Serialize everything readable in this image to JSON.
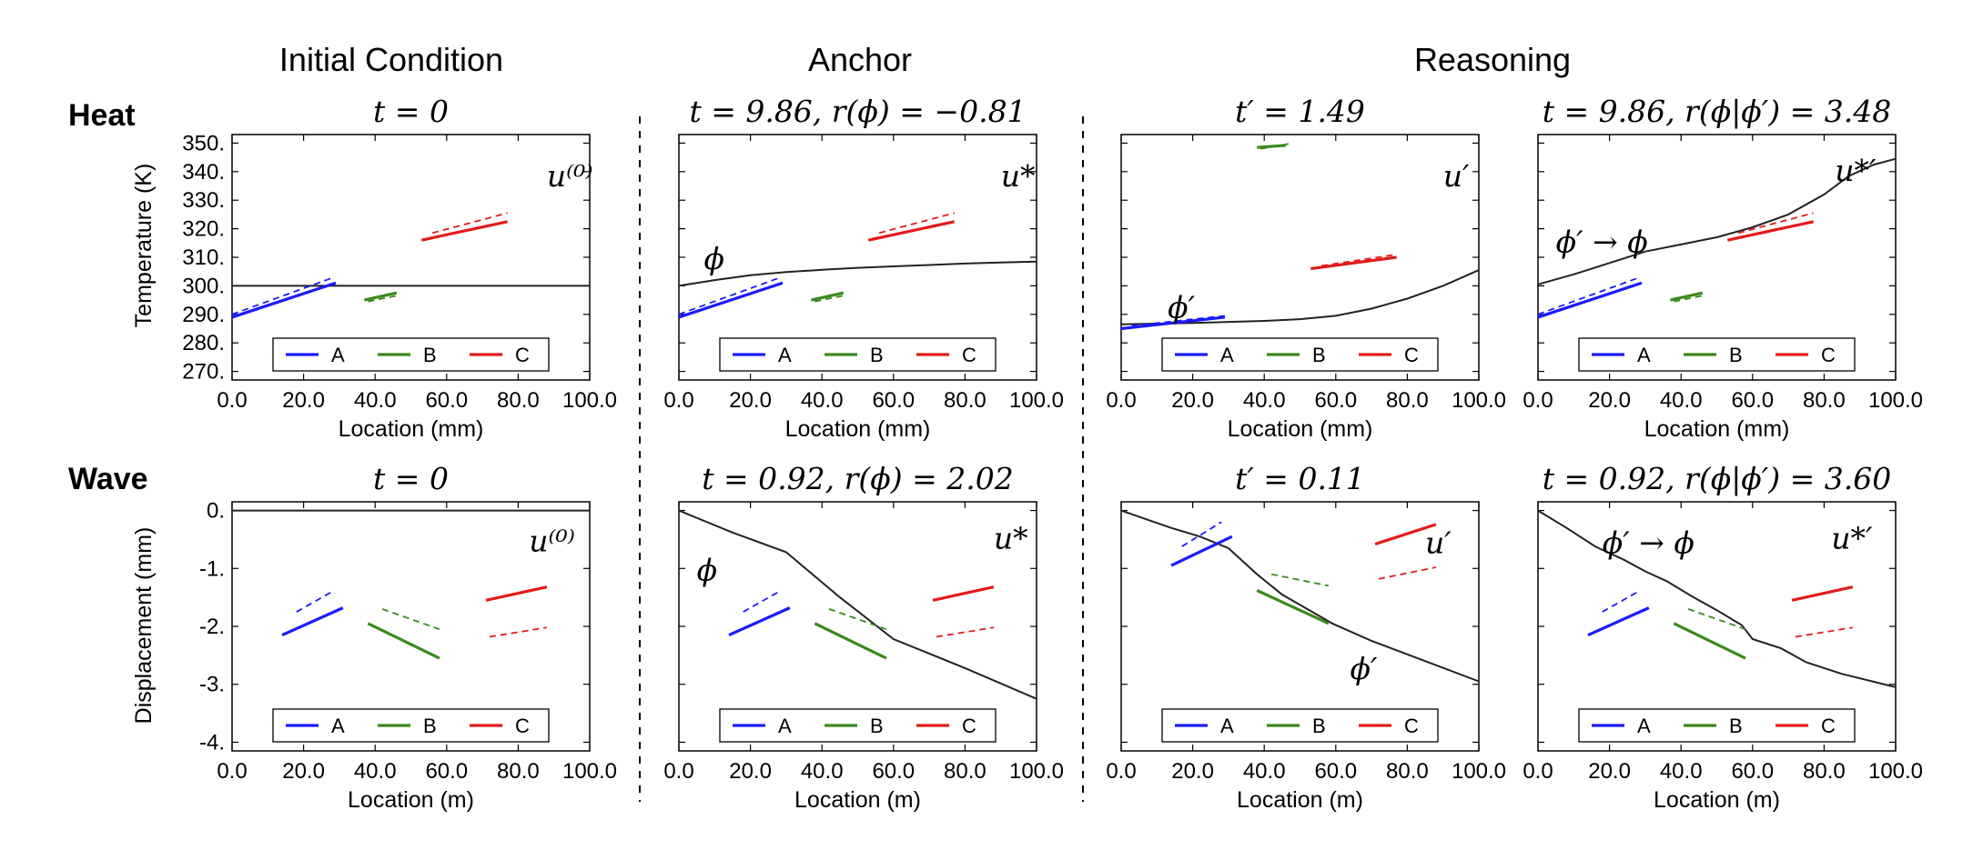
{
  "column_headers": [
    "Initial Condition",
    "Anchor",
    "Reasoning"
  ],
  "row_labels": [
    "Heat",
    "Wave"
  ],
  "legend_items": [
    {
      "label": "A",
      "color": "#1a1aff"
    },
    {
      "label": "B",
      "color": "#3a8a1c"
    },
    {
      "label": "C",
      "color": "#e31a1a"
    }
  ],
  "colors": {
    "line": "#222222",
    "A": "#1a1aff",
    "B": "#3a8a1c",
    "C": "#e31a1a"
  },
  "heat": {
    "ylabel": "Temperature (K)",
    "xlabel": "Location (mm)",
    "yticks": [
      "350.",
      "340.",
      "330.",
      "320.",
      "310.",
      "300.",
      "290.",
      "280.",
      "270."
    ],
    "xticks": [
      "0.0",
      "20.0",
      "40.0",
      "60.0",
      "80.0",
      "100.0"
    ]
  },
  "wave": {
    "ylabel": "Displacement (mm)",
    "xlabel": "Location (m)",
    "yticks": [
      "0.",
      "-1.",
      "-2.",
      "-3.",
      "-4."
    ],
    "xticks": [
      "0.0",
      "20.0",
      "40.0",
      "60.0",
      "80.0",
      "100.0"
    ]
  },
  "chart_data": [
    {
      "type": "line",
      "row": "Heat",
      "column": "Initial Condition",
      "title": "t = 0",
      "annotations": [
        {
          "text": "u⁽⁰⁾",
          "x": 88,
          "y": 338
        }
      ],
      "xlim": [
        0,
        100
      ],
      "ylim": [
        267,
        353
      ],
      "curve": [
        [
          0,
          300
        ],
        [
          100,
          300
        ]
      ],
      "segments": [
        {
          "key": "A",
          "solid": [
            [
              0,
              289
            ],
            [
              29,
              301
            ]
          ],
          "dashed": [
            [
              0,
              290
            ],
            [
              28.5,
              303
            ]
          ]
        },
        {
          "key": "B",
          "solid": [
            [
              37,
              295
            ],
            [
              46,
              297.5
            ]
          ],
          "dashed": [
            [
              38,
              294.5
            ],
            [
              47,
              296.8
            ]
          ]
        },
        {
          "key": "C",
          "solid": [
            [
              53,
              316
            ],
            [
              77,
              322.5
            ]
          ],
          "dashed": [
            [
              56,
              318.5
            ],
            [
              77,
              325.5
            ]
          ]
        }
      ]
    },
    {
      "type": "line",
      "row": "Heat",
      "column": "Anchor",
      "title": "t = 9.86, r(ϕ) = −0.81",
      "annotations": [
        {
          "text": "u*",
          "x": 90,
          "y": 338
        },
        {
          "text": "ϕ",
          "x": 7,
          "y": 309
        }
      ],
      "xlim": [
        0,
        100
      ],
      "ylim": [
        267,
        353
      ],
      "curve": [
        [
          0,
          300
        ],
        [
          10,
          302
        ],
        [
          20,
          303.7
        ],
        [
          30,
          304.8
        ],
        [
          40,
          305.6
        ],
        [
          50,
          306.3
        ],
        [
          60,
          306.8
        ],
        [
          70,
          307.3
        ],
        [
          80,
          307.8
        ],
        [
          90,
          308.2
        ],
        [
          100,
          308.5
        ]
      ],
      "segments": [
        {
          "key": "A",
          "solid": [
            [
              0,
              289
            ],
            [
              29,
              301
            ]
          ],
          "dashed": [
            [
              0,
              290
            ],
            [
              28.5,
              303
            ]
          ]
        },
        {
          "key": "B",
          "solid": [
            [
              37,
              295
            ],
            [
              46,
              297.5
            ]
          ],
          "dashed": [
            [
              38,
              294.5
            ],
            [
              47,
              296.8
            ]
          ]
        },
        {
          "key": "C",
          "solid": [
            [
              53,
              316
            ],
            [
              77,
              322.5
            ]
          ],
          "dashed": [
            [
              56,
              318.5
            ],
            [
              77,
              325.5
            ]
          ]
        }
      ]
    },
    {
      "type": "line",
      "row": "Heat",
      "column": "Reasoning",
      "title": "t′ = 1.49",
      "annotations": [
        {
          "text": "u′",
          "x": 90,
          "y": 338
        },
        {
          "text": "ϕ′",
          "x": 13,
          "y": 292
        }
      ],
      "xlim": [
        0,
        100
      ],
      "ylim": [
        267,
        353
      ],
      "curve": [
        [
          0,
          286.5
        ],
        [
          20,
          287
        ],
        [
          40,
          287.7
        ],
        [
          50,
          288.3
        ],
        [
          60,
          289.5
        ],
        [
          70,
          292
        ],
        [
          80,
          295.5
        ],
        [
          90,
          300
        ],
        [
          100,
          305.5
        ]
      ],
      "segments": [
        {
          "key": "A",
          "solid": [
            [
              0,
              285
            ],
            [
              29,
              289
            ]
          ],
          "dashed": [
            [
              3,
              286
            ],
            [
              29,
              289.5
            ]
          ]
        },
        {
          "key": "B",
          "solid": [
            [
              38,
              348.5
            ],
            [
              46,
              349.2
            ]
          ],
          "dashed": [
            [
              39,
              348
            ],
            [
              47,
              349.8
            ]
          ]
        },
        {
          "key": "C",
          "solid": [
            [
              53,
              306
            ],
            [
              77,
              310
            ]
          ],
          "dashed": [
            [
              56,
              307
            ],
            [
              77,
              311
            ]
          ]
        }
      ]
    },
    {
      "type": "line",
      "row": "Heat",
      "column": "Reasoning",
      "title": "t = 9.86, r(ϕ|ϕ′) = 3.48",
      "annotations": [
        {
          "text": "u*′",
          "x": 83,
          "y": 340
        },
        {
          "text": "ϕ′ → ϕ",
          "x": 5,
          "y": 315
        }
      ],
      "xlim": [
        0,
        100
      ],
      "ylim": [
        267,
        353
      ],
      "curve": [
        [
          0,
          300.5
        ],
        [
          10,
          304
        ],
        [
          20,
          308
        ],
        [
          30,
          312
        ],
        [
          40,
          314.5
        ],
        [
          50,
          317
        ],
        [
          60,
          320.5
        ],
        [
          70,
          325
        ],
        [
          80,
          332
        ],
        [
          87,
          338.5
        ],
        [
          94,
          342.5
        ],
        [
          100,
          344.5
        ]
      ],
      "segments": [
        {
          "key": "A",
          "solid": [
            [
              0,
              289
            ],
            [
              29,
              301
            ]
          ],
          "dashed": [
            [
              0,
              290
            ],
            [
              28.5,
              303
            ]
          ]
        },
        {
          "key": "B",
          "solid": [
            [
              37,
              295
            ],
            [
              46,
              297.5
            ]
          ],
          "dashed": [
            [
              38,
              294.5
            ],
            [
              47,
              296.8
            ]
          ]
        },
        {
          "key": "C",
          "solid": [
            [
              53,
              316
            ],
            [
              77,
              322.5
            ]
          ],
          "dashed": [
            [
              56,
              318.5
            ],
            [
              77,
              325.5
            ]
          ]
        }
      ]
    },
    {
      "type": "line",
      "row": "Wave",
      "column": "Initial Condition",
      "title": "t = 0",
      "annotations": [
        {
          "text": "u⁽⁰⁾",
          "x": 83,
          "y": -0.55
        }
      ],
      "xlim": [
        0,
        100
      ],
      "ylim": [
        -4.15,
        0.15
      ],
      "curve": [
        [
          0,
          0
        ],
        [
          100,
          0
        ]
      ],
      "segments": [
        {
          "key": "A",
          "solid": [
            [
              14,
              -2.15
            ],
            [
              31,
              -1.68
            ]
          ],
          "dashed": [
            [
              18,
              -1.75
            ],
            [
              28,
              -1.4
            ]
          ]
        },
        {
          "key": "B",
          "solid": [
            [
              38,
              -1.95
            ],
            [
              58,
              -2.55
            ]
          ],
          "dashed": [
            [
              42,
              -1.7
            ],
            [
              58,
              -2.05
            ]
          ]
        },
        {
          "key": "C",
          "solid": [
            [
              71,
              -1.55
            ],
            [
              88,
              -1.32
            ]
          ],
          "dashed": [
            [
              72,
              -2.18
            ],
            [
              88,
              -2.02
            ]
          ]
        }
      ]
    },
    {
      "type": "line",
      "row": "Wave",
      "column": "Anchor",
      "title": "t = 0.92, r(ϕ) = 2.02",
      "annotations": [
        {
          "text": "u*",
          "x": 88,
          "y": -0.5
        },
        {
          "text": "ϕ",
          "x": 5,
          "y": -1.05
        }
      ],
      "xlim": [
        0,
        100
      ],
      "ylim": [
        -4.15,
        0.15
      ],
      "curve": [
        [
          0,
          0
        ],
        [
          15,
          -0.38
        ],
        [
          30,
          -0.72
        ],
        [
          45,
          -1.5
        ],
        [
          60,
          -2.22
        ],
        [
          80,
          -2.72
        ],
        [
          100,
          -3.25
        ]
      ],
      "segments": [
        {
          "key": "A",
          "solid": [
            [
              14,
              -2.15
            ],
            [
              31,
              -1.68
            ]
          ],
          "dashed": [
            [
              18,
              -1.75
            ],
            [
              28,
              -1.4
            ]
          ]
        },
        {
          "key": "B",
          "solid": [
            [
              38,
              -1.95
            ],
            [
              58,
              -2.55
            ]
          ],
          "dashed": [
            [
              42,
              -1.7
            ],
            [
              58,
              -2.05
            ]
          ]
        },
        {
          "key": "C",
          "solid": [
            [
              71,
              -1.55
            ],
            [
              88,
              -1.32
            ]
          ],
          "dashed": [
            [
              72,
              -2.18
            ],
            [
              88,
              -2.02
            ]
          ]
        }
      ]
    },
    {
      "type": "line",
      "row": "Wave",
      "column": "Reasoning",
      "title": "t′ = 0.11",
      "annotations": [
        {
          "text": "u′",
          "x": 85,
          "y": -0.58
        },
        {
          "text": "ϕ′",
          "x": 64,
          "y": -2.75
        }
      ],
      "xlim": [
        0,
        100
      ],
      "ylim": [
        -4.15,
        0.15
      ],
      "curve": [
        [
          0,
          0
        ],
        [
          14,
          -0.3
        ],
        [
          22,
          -0.45
        ],
        [
          30,
          -0.65
        ],
        [
          38,
          -1.1
        ],
        [
          45,
          -1.45
        ],
        [
          52,
          -1.7
        ],
        [
          59,
          -1.95
        ],
        [
          70,
          -2.25
        ],
        [
          85,
          -2.6
        ],
        [
          100,
          -2.95
        ]
      ],
      "segments": [
        {
          "key": "A",
          "solid": [
            [
              14,
              -0.95
            ],
            [
              31,
              -0.45
            ]
          ],
          "dashed": [
            [
              17,
              -0.62
            ],
            [
              28,
              -0.2
            ]
          ]
        },
        {
          "key": "B",
          "solid": [
            [
              38,
              -1.38
            ],
            [
              58,
              -1.95
            ]
          ],
          "dashed": [
            [
              42,
              -1.1
            ],
            [
              58,
              -1.3
            ]
          ]
        },
        {
          "key": "C",
          "solid": [
            [
              71,
              -0.58
            ],
            [
              88,
              -0.24
            ]
          ],
          "dashed": [
            [
              72,
              -1.18
            ],
            [
              88,
              -0.98
            ]
          ]
        }
      ]
    },
    {
      "type": "line",
      "row": "Wave",
      "column": "Reasoning",
      "title": "t = 0.92, r(ϕ|ϕ′) = 3.60",
      "annotations": [
        {
          "text": "u*′",
          "x": 82,
          "y": -0.5
        },
        {
          "text": "ϕ′ → ϕ",
          "x": 18,
          "y": -0.58
        }
      ],
      "xlim": [
        0,
        100
      ],
      "ylim": [
        -4.15,
        0.15
      ],
      "curve": [
        [
          0,
          0
        ],
        [
          8,
          -0.3
        ],
        [
          16,
          -0.62
        ],
        [
          24,
          -0.85
        ],
        [
          30,
          -1.05
        ],
        [
          36,
          -1.22
        ],
        [
          43,
          -1.48
        ],
        [
          50,
          -1.72
        ],
        [
          57,
          -1.98
        ],
        [
          60,
          -2.22
        ],
        [
          68,
          -2.38
        ],
        [
          75,
          -2.62
        ],
        [
          85,
          -2.82
        ],
        [
          100,
          -3.05
        ]
      ],
      "segments": [
        {
          "key": "A",
          "solid": [
            [
              14,
              -2.15
            ],
            [
              31,
              -1.68
            ]
          ],
          "dashed": [
            [
              18,
              -1.75
            ],
            [
              28,
              -1.4
            ]
          ]
        },
        {
          "key": "B",
          "solid": [
            [
              38,
              -1.95
            ],
            [
              58,
              -2.55
            ]
          ],
          "dashed": [
            [
              42,
              -1.7
            ],
            [
              58,
              -2.05
            ]
          ]
        },
        {
          "key": "C",
          "solid": [
            [
              71,
              -1.55
            ],
            [
              88,
              -1.32
            ]
          ],
          "dashed": [
            [
              72,
              -2.18
            ],
            [
              88,
              -2.02
            ]
          ]
        }
      ]
    }
  ]
}
